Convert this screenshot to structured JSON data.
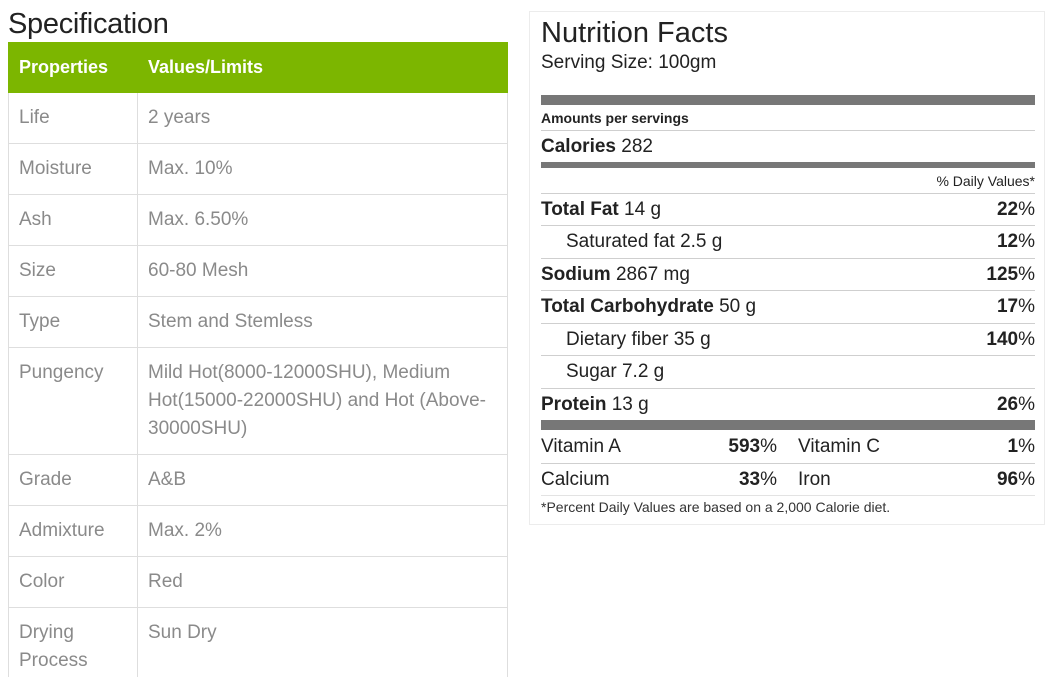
{
  "spec": {
    "title": "Specification",
    "headers": [
      "Properties",
      "Values/Limits"
    ],
    "rows": [
      {
        "property": "Life",
        "value": "2 years"
      },
      {
        "property": "Moisture",
        "value": "Max. 10%"
      },
      {
        "property": "Ash",
        "value": "Max. 6.50%"
      },
      {
        "property": "Size",
        "value": "60-80 Mesh"
      },
      {
        "property": "Type",
        "value": "Stem and Stemless"
      },
      {
        "property": "Pungency",
        "value": "Mild Hot(8000-12000SHU), Medium Hot(15000-22000SHU) and Hot (Above-30000SHU)"
      },
      {
        "property": "Grade",
        "value": "A&B"
      },
      {
        "property": "Admixture",
        "value": "Max. 2%"
      },
      {
        "property": "Color",
        "value": "Red"
      },
      {
        "property": "Drying Process",
        "value": "Sun Dry"
      }
    ],
    "header_color": "#7cb600"
  },
  "nutrition": {
    "title": "Nutrition Facts",
    "serving_size": "Serving Size: 100gm",
    "amounts_label": "Amounts per servings",
    "calories_label": "Calories",
    "calories_value": "282",
    "daily_values_label": "% Daily Values*",
    "nutrients": [
      {
        "name": "Total Fat",
        "amount": "14 g",
        "dv": "22%",
        "dv_num": "22",
        "bold": true
      },
      {
        "name": "Saturated fat",
        "amount": "2.5 g",
        "dv": "12%",
        "dv_num": "12",
        "bold": false
      },
      {
        "name": "Sodium",
        "amount": "2867 mg",
        "dv": "125%",
        "dv_num": "125",
        "bold": true
      },
      {
        "name": "Total Carbohydrate",
        "amount": "50 g",
        "dv": "17%",
        "dv_num": "17",
        "bold": true
      },
      {
        "name": "Dietary fiber",
        "amount": "35 g",
        "dv": "140%",
        "dv_num": "140",
        "bold": false
      },
      {
        "name": "Sugar",
        "amount": "7.2 g",
        "dv": "",
        "dv_num": "",
        "bold": false
      },
      {
        "name": "Protein",
        "amount": "13 g",
        "dv": "26%",
        "dv_num": "26",
        "bold": true
      }
    ],
    "vitamins": [
      {
        "left_name": "Vitamin A",
        "left_num": "593",
        "right_name": "Vitamin C",
        "right_num": "1"
      },
      {
        "left_name": "Calcium",
        "left_num": "33",
        "right_name": "Iron",
        "right_num": "96"
      }
    ],
    "percent_sign": "%",
    "footnote": "*Percent Daily Values are based on a 2,000 Calorie diet."
  }
}
